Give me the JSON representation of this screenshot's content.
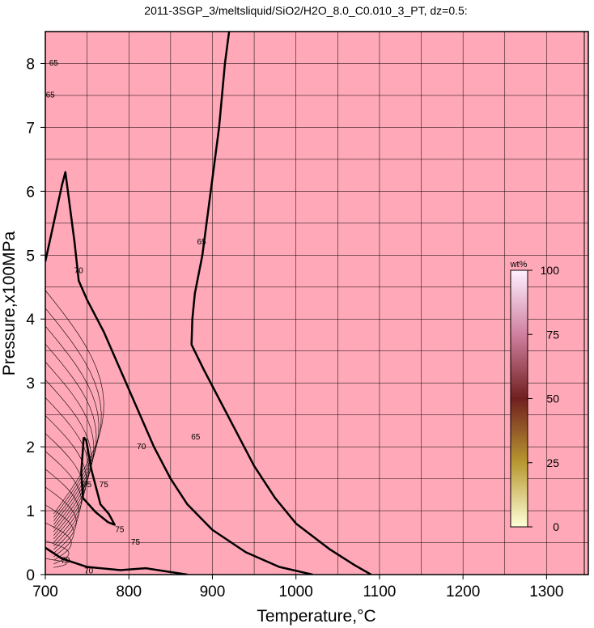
{
  "chart_data": {
    "type": "contour",
    "title": "2011-3SGP_3/meltsliquid/SiO2/H2O_8.0_C0.010_3_PT, dz=0.5:",
    "xlabel": "Temperature,°C",
    "ylabel": "Pressure,x100MPa",
    "xlim": [
      700,
      1350
    ],
    "ylim": [
      0,
      8.5
    ],
    "xticks": [
      700,
      800,
      900,
      1000,
      1100,
      1200,
      1300
    ],
    "yticks": [
      0,
      1,
      2,
      3,
      4,
      5,
      6,
      7,
      8
    ],
    "grid": true,
    "background_color": "#ffa8b8",
    "colorbar": {
      "label": "wt%",
      "ticks": [
        0,
        25,
        50,
        75,
        100
      ],
      "colors": [
        "#ffffd8",
        "#b89830",
        "#702020",
        "#d080a0",
        "#fff0ff"
      ]
    },
    "contour_labels": [
      {
        "value": "65",
        "x": 710,
        "y": 8.0
      },
      {
        "value": "65",
        "x": 706,
        "y": 7.5
      },
      {
        "value": "70",
        "x": 740,
        "y": 4.75
      },
      {
        "value": "65",
        "x": 887,
        "y": 5.2
      },
      {
        "value": "70",
        "x": 815,
        "y": 2.0
      },
      {
        "value": "65",
        "x": 880,
        "y": 2.15
      },
      {
        "value": "75",
        "x": 770,
        "y": 1.4
      },
      {
        "value": "75",
        "x": 750,
        "y": 1.4
      },
      {
        "value": "75",
        "x": 789,
        "y": 0.7
      },
      {
        "value": "75",
        "x": 808,
        "y": 0.5
      },
      {
        "value": "70",
        "x": 724,
        "y": 0.22
      },
      {
        "value": "70",
        "x": 752,
        "y": 0.05
      }
    ],
    "bold_contours": [
      {
        "level": 65,
        "points": [
          [
            920,
            8.5
          ],
          [
            915,
            8.0
          ],
          [
            908,
            7.0
          ],
          [
            898,
            6.0
          ],
          [
            888,
            5.0
          ],
          [
            879,
            4.4
          ],
          [
            876,
            4.0
          ],
          [
            875,
            3.6
          ],
          [
            890,
            3.2
          ],
          [
            910,
            2.7
          ],
          [
            930,
            2.2
          ],
          [
            950,
            1.7
          ],
          [
            975,
            1.2
          ],
          [
            1000,
            0.8
          ],
          [
            1040,
            0.4
          ],
          [
            1070,
            0.15
          ],
          [
            1090,
            0
          ]
        ]
      },
      {
        "level": 70,
        "points": [
          [
            700,
            4.9
          ],
          [
            710,
            5.5
          ],
          [
            720,
            6.1
          ],
          [
            724,
            6.3
          ],
          [
            729,
            5.8
          ],
          [
            735,
            5.2
          ],
          [
            740,
            4.6
          ],
          [
            750,
            4.3
          ],
          [
            770,
            3.8
          ],
          [
            790,
            3.2
          ],
          [
            810,
            2.6
          ],
          [
            830,
            2.0
          ],
          [
            850,
            1.5
          ],
          [
            870,
            1.1
          ],
          [
            900,
            0.7
          ],
          [
            940,
            0.35
          ],
          [
            980,
            0.12
          ],
          [
            1020,
            0
          ]
        ]
      },
      {
        "level": 75,
        "points": [
          [
            746,
            2.15
          ],
          [
            743,
            1.6
          ],
          [
            745,
            1.2
          ],
          [
            760,
            0.98
          ],
          [
            775,
            0.82
          ],
          [
            783,
            0.78
          ],
          [
            776,
            0.95
          ],
          [
            766,
            1.1
          ],
          [
            759,
            1.45
          ],
          [
            755,
            1.65
          ],
          [
            749,
            2.1
          ],
          [
            746,
            2.15
          ]
        ]
      },
      {
        "level": 70,
        "points": [
          [
            700,
            0.42
          ],
          [
            720,
            0.25
          ],
          [
            750,
            0.12
          ],
          [
            790,
            0.07
          ],
          [
            820,
            0.1
          ],
          [
            850,
            0.04
          ],
          [
            870,
            0
          ]
        ]
      }
    ]
  }
}
